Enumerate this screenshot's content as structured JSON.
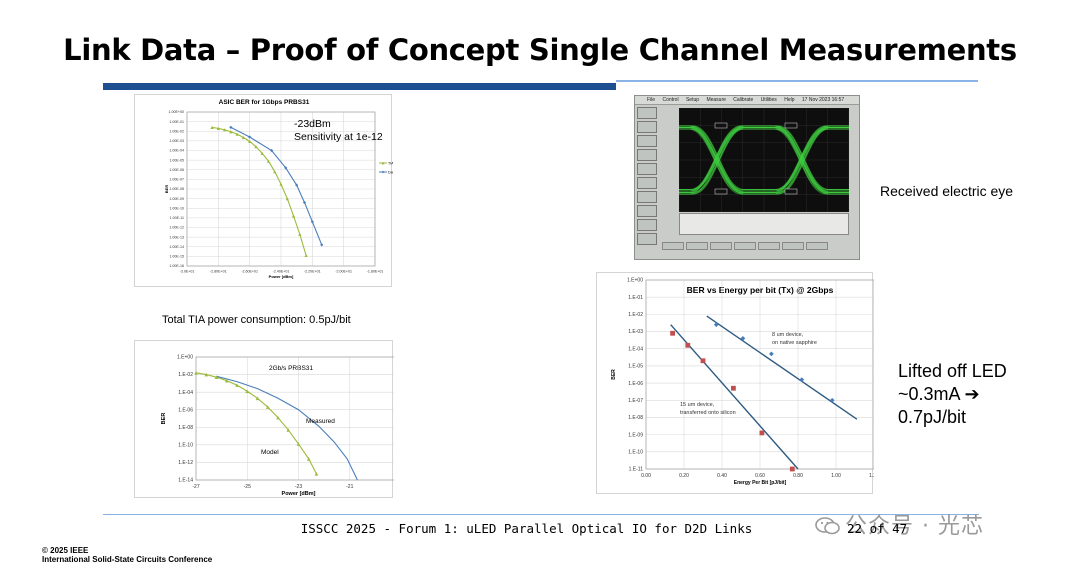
{
  "slide": {
    "title": "Link Data – Proof of Concept Single Channel Measurements",
    "footer": "ISSCC 2025 - Forum 1: uLED Parallel Optical IO for D2D Links",
    "page_number": "22 of 47",
    "copyright_line1": "© 2025 IEEE",
    "copyright_line2": "International Solid-State Circuits Conference",
    "watermark": "公众号 · 光芯"
  },
  "notes": {
    "tia_power": "Total TIA power consumption: 0.5pJ/bit",
    "eye_caption": "Received electric eye",
    "led_text": "Lifted off LED\n~0.3mA ➔\n0.7pJ/bit"
  },
  "eye_scope": {
    "menu": [
      "File",
      "Control",
      "Setup",
      "Measure",
      "Calibrate",
      "Utilities",
      "Help"
    ],
    "timestamp": "17 Nov 2023  16:57"
  },
  "chart_data": [
    {
      "id": "asic_ber",
      "type": "line",
      "title": "ASIC BER for 1Gbps PRBS31",
      "xlabel": "Power [dBm]",
      "ylabel": "BER",
      "x_ticks": [
        "-3.0E+01",
        "-2.80E+01",
        "-2.60E+01",
        "-2.40E+01",
        "-2.20E+01",
        "-2.00E+01",
        "-1.80E+01"
      ],
      "y_ticks": [
        "1.00E+00",
        "1.00E-01",
        "1.00E-02",
        "1.00E-03",
        "1.00E-04",
        "1.00E-05",
        "1.00E-06",
        "1.00E-07",
        "1.00E-08",
        "1.00E-09",
        "1.00E-10",
        "1.00E-11",
        "1.00E-12",
        "1.00E-13",
        "1.00E-14",
        "1.00E-15",
        "1.00E-16"
      ],
      "xlim": [
        -30,
        -18
      ],
      "ylim_log10": [
        0,
        -16
      ],
      "grid": true,
      "legend_position": "right",
      "annotation": "-23dBm\nSensitivity at 1e-12",
      "series": [
        {
          "name": "TIA model",
          "color": "#9bbb3b",
          "marker": "triangle",
          "x": [
            -28.4,
            -28.0,
            -27.6,
            -27.2,
            -26.8,
            -26.4,
            -26.0,
            -25.6,
            -25.2,
            -24.8,
            -24.4,
            -24.0,
            -23.6,
            -23.2,
            -22.8,
            -22.4
          ],
          "y": [
            -1.6,
            -1.7,
            -1.85,
            -2.05,
            -2.3,
            -2.65,
            -3.05,
            -3.6,
            -4.3,
            -5.1,
            -6.2,
            -7.5,
            -9.0,
            -10.8,
            -12.7,
            -14.9
          ]
        },
        {
          "name": "Data",
          "color": "#4a7ebb",
          "marker": "diamond",
          "x": [
            -27.2,
            -26.0,
            -24.6,
            -23.7,
            -23.0,
            -22.5,
            -22.0,
            -21.4
          ],
          "y": [
            -1.6,
            -2.6,
            -4.0,
            -5.8,
            -7.6,
            -9.4,
            -11.4,
            -13.8
          ]
        }
      ]
    },
    {
      "id": "ber_2gbps",
      "type": "line",
      "title": "2Gb/s PRBS31",
      "xlabel": "Power [dBm]",
      "ylabel": "BER",
      "x_ticks": [
        "-27",
        "-25",
        "-23",
        "-21",
        "-19"
      ],
      "y_ticks": [
        "1.E+00",
        "1.E-02",
        "1.E-04",
        "1.E-06",
        "1.E-08",
        "1.E-10",
        "1.E-12",
        "1.E-14"
      ],
      "xlim": [
        -27,
        -19
      ],
      "ylim_log10": [
        0,
        -14
      ],
      "grid": true,
      "annotations": [
        "Measured",
        "Model"
      ],
      "series": [
        {
          "name": "Measured",
          "color": "#4a7ebb",
          "marker": "none",
          "x": [
            -26.2,
            -25.4,
            -24.6,
            -23.8,
            -23.0,
            -22.2,
            -21.6,
            -21.1,
            -20.7
          ],
          "y": [
            -2.2,
            -2.8,
            -3.6,
            -4.7,
            -6.0,
            -7.9,
            -9.7,
            -11.6,
            -14.0
          ]
        },
        {
          "name": "Model",
          "color": "#9bbb3b",
          "marker": "triangle",
          "x": [
            -27.0,
            -26.6,
            -26.2,
            -25.8,
            -25.4,
            -25.0,
            -24.6,
            -24.2,
            -23.8,
            -23.4,
            -23.0,
            -22.6,
            -22.3
          ],
          "y": [
            -1.8,
            -2.0,
            -2.3,
            -2.7,
            -3.2,
            -3.9,
            -4.7,
            -5.7,
            -6.9,
            -8.3,
            -9.9,
            -11.6,
            -13.3
          ]
        }
      ]
    },
    {
      "id": "ber_vs_energy",
      "type": "scatter",
      "title": "BER vs Energy per bit (Tx) @ 2Gbps",
      "xlabel": "Energy Per Bit [pJ/bit]",
      "ylabel": "BER",
      "x_ticks": [
        "0.00",
        "0.20",
        "0.40",
        "0.60",
        "0.80",
        "1.00",
        "1.20"
      ],
      "y_ticks": [
        "1.E+00",
        "1.E-01",
        "1.E-02",
        "1.E-03",
        "1.E-04",
        "1.E-05",
        "1.E-06",
        "1.E-07",
        "1.E-08",
        "1.E-09",
        "1.E-10",
        "1.E-11"
      ],
      "xlim": [
        0,
        1.2
      ],
      "ylim_log10": [
        0,
        -11
      ],
      "grid": true,
      "series": [
        {
          "name": "8 um device, on native sapphire",
          "color": "#4a7ebb",
          "marker": "diamond",
          "x": [
            0.37,
            0.51,
            0.66,
            0.82,
            0.98
          ],
          "y": [
            -2.6,
            -3.4,
            -4.3,
            -5.8,
            -7.0
          ],
          "fit": {
            "x": [
              0.32,
              1.11
            ],
            "y": [
              -2.1,
              -8.1
            ]
          }
        },
        {
          "name": "15 um device, transferred onto silicon",
          "color": "#c0504d",
          "marker": "square",
          "x": [
            0.14,
            0.22,
            0.3,
            0.46,
            0.61,
            0.77
          ],
          "y": [
            -3.1,
            -3.8,
            -4.7,
            -6.3,
            -8.9,
            -11.0
          ],
          "fit": {
            "x": [
              0.13,
              0.8
            ],
            "y": [
              -2.6,
              -11.0
            ]
          }
        }
      ]
    }
  ]
}
